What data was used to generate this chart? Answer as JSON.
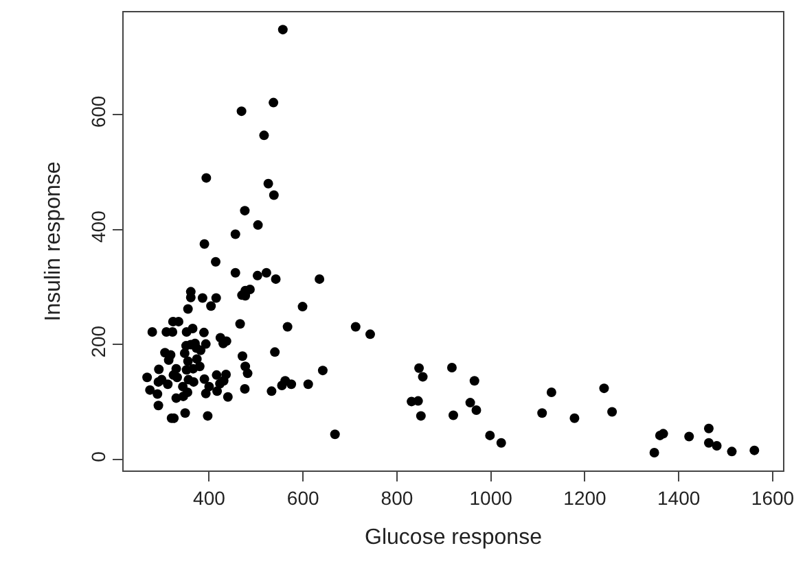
{
  "chart_data": {
    "type": "scatter",
    "xlabel": "Glucose response",
    "ylabel": "Insulin response",
    "xlim": [
      218,
      1622
    ],
    "ylim": [
      -19,
      778
    ],
    "xticks": [
      400,
      600,
      800,
      1000,
      1200,
      1400,
      1600
    ],
    "yticks": [
      0,
      200,
      400,
      600
    ],
    "marker": "circle",
    "series": [
      {
        "color": "#000000",
        "x": [
          743,
          847,
          855,
          917,
          965,
          831,
          845,
          851,
          920,
          956,
          969,
          998,
          1022,
          1109,
          1129,
          1178,
          1241,
          1258,
          1360,
          1367,
          1348,
          1422,
          1464,
          1464,
          1481,
          1513,
          1561,
          557,
          537,
          469,
          517,
          394,
          526,
          538,
          476,
          504,
          456,
          390,
          414,
          456,
          522,
          503,
          542,
          635,
          487,
          477,
          470,
          477,
          599,
          361,
          361,
          415,
          386,
          404,
          355,
          466,
          567,
          712,
          323,
          335,
          279,
          309,
          322,
          352,
          365,
          389,
          424,
          437,
          430,
          393,
          361,
          373,
          382,
          306,
          318,
          348,
          351,
          370,
          471,
          540,
          314,
          355,
          374,
          293,
          330,
          324,
          352,
          366,
          380,
          477,
          482,
          642,
          268,
          292,
          299,
          312,
          332,
          344,
          356,
          367,
          390,
          416,
          436,
          423,
          431,
          562,
          555,
          575,
          611,
          274,
          290,
          330,
          345,
          354,
          393,
          400,
          417,
          440,
          476,
          533,
          292,
          320,
          325,
          349,
          397,
          668
        ],
        "values": [
          218,
          159,
          144,
          160,
          137,
          101,
          102,
          76,
          77,
          99,
          86,
          42,
          29,
          81,
          117,
          72,
          124,
          83,
          42,
          45,
          12,
          40,
          54,
          29,
          24,
          14,
          16,
          748,
          621,
          606,
          564,
          490,
          480,
          460,
          433,
          408,
          392,
          375,
          344,
          325,
          325,
          320,
          314,
          314,
          296,
          294,
          286,
          285,
          266,
          292,
          282,
          281,
          281,
          267,
          262,
          236,
          231,
          231,
          240,
          240,
          222,
          222,
          222,
          222,
          228,
          221,
          212,
          206,
          202,
          201,
          200,
          194,
          190,
          186,
          182,
          185,
          198,
          202,
          180,
          187,
          173,
          171,
          175,
          157,
          158,
          147,
          156,
          158,
          162,
          162,
          150,
          155,
          143,
          135,
          139,
          131,
          143,
          127,
          139,
          135,
          140,
          147,
          148,
          132,
          137,
          137,
          129,
          131,
          131,
          121,
          114,
          107,
          110,
          117,
          115,
          127,
          119,
          109,
          123,
          119,
          94,
          72,
          72,
          81,
          76,
          44
        ]
      }
    ]
  }
}
